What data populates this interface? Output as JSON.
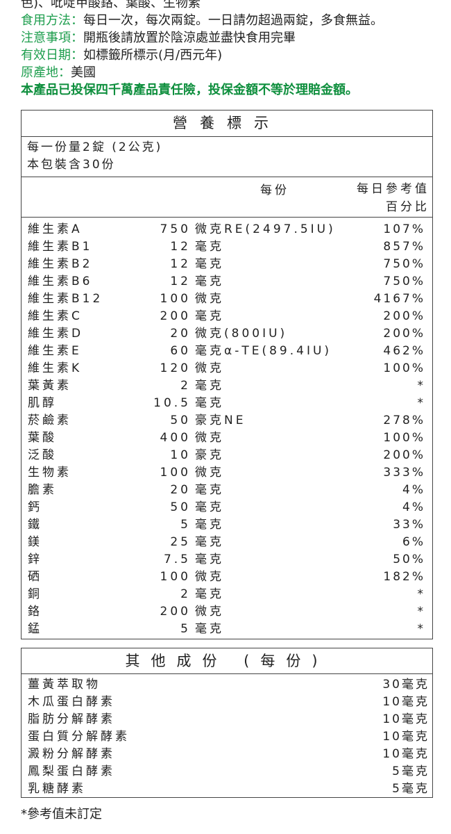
{
  "info": {
    "top_line": "色)、吡啶甲酸鉻、葉酸、生物素",
    "lines": [
      {
        "label": "食用方法：",
        "text": "每日一次，每次兩錠。一日請勿超過兩錠，多食無益。"
      },
      {
        "label": "注意事項：",
        "text": "開瓶後請放置於陰涼處並盡快食用完畢"
      },
      {
        "label": "有效日期：",
        "text": "如標籤所標示(月/西元年)"
      },
      {
        "label": "原產地：",
        "text": "美國"
      }
    ],
    "insurance": "本產品已投保四千萬產品責任險，投保金額不等於理賠金額。"
  },
  "nutrition": {
    "title": "營養標示",
    "serving_size": "每一份量2錠 (2公克)",
    "servings": "本包裝含30份",
    "col_per_serving": "每份",
    "col_dv_1": "每日參考值",
    "col_dv_2": "百分比",
    "rows": [
      {
        "name": "維生素A",
        "qty": "750",
        "unit": "微克RE(2497.5IU)",
        "dv": "107%"
      },
      {
        "name": "維生素B1",
        "qty": "12",
        "unit": "毫克",
        "dv": "857%"
      },
      {
        "name": "維生素B2",
        "qty": "12",
        "unit": "毫克",
        "dv": "750%"
      },
      {
        "name": "維生素B6",
        "qty": "12",
        "unit": "毫克",
        "dv": "750%"
      },
      {
        "name": "維生素B12",
        "qty": "100",
        "unit": "微克",
        "dv": "4167%"
      },
      {
        "name": "維生素C",
        "qty": "200",
        "unit": "毫克",
        "dv": "200%"
      },
      {
        "name": "維生素D",
        "qty": "20",
        "unit": "微克(800IU)",
        "dv": "200%"
      },
      {
        "name": "維生素E",
        "qty": "60",
        "unit": "毫克α-TE(89.4IU)",
        "dv": "462%"
      },
      {
        "name": "維生素K",
        "qty": "120",
        "unit": "微克",
        "dv": "100%"
      },
      {
        "name": "葉黃素",
        "qty": "2",
        "unit": "毫克",
        "dv": "*"
      },
      {
        "name": "肌醇",
        "qty": "10.5",
        "unit": "毫克",
        "dv": "*"
      },
      {
        "name": "菸鹼素",
        "qty": "50",
        "unit": "豪克NE",
        "dv": "278%"
      },
      {
        "name": "葉酸",
        "qty": "400",
        "unit": "微克",
        "dv": "100%"
      },
      {
        "name": "泛酸",
        "qty": "10",
        "unit": "豪克",
        "dv": "200%"
      },
      {
        "name": "生物素",
        "qty": "100",
        "unit": "微克",
        "dv": "333%"
      },
      {
        "name": "膽素",
        "qty": "20",
        "unit": "毫克",
        "dv": "4%"
      },
      {
        "name": "鈣",
        "qty": "50",
        "unit": "毫克",
        "dv": "4%"
      },
      {
        "name": "鐵",
        "qty": "5",
        "unit": "毫克",
        "dv": "33%"
      },
      {
        "name": "鎂",
        "qty": "25",
        "unit": "毫克",
        "dv": "6%"
      },
      {
        "name": "鋅",
        "qty": "7.5",
        "unit": "毫克",
        "dv": "50%"
      },
      {
        "name": "硒",
        "qty": "100",
        "unit": "微克",
        "dv": "182%"
      },
      {
        "name": "銅",
        "qty": "2",
        "unit": "毫克",
        "dv": "*"
      },
      {
        "name": "鉻",
        "qty": "200",
        "unit": "微克",
        "dv": "*"
      },
      {
        "name": "錳",
        "qty": "5",
        "unit": "毫克",
        "dv": "*"
      }
    ]
  },
  "other": {
    "title": "其他成份 (每份)",
    "rows": [
      {
        "name": "薑黃萃取物",
        "amount": "30毫克"
      },
      {
        "name": "木瓜蛋白酵素",
        "amount": "10毫克"
      },
      {
        "name": "脂肪分解酵素",
        "amount": "10毫克"
      },
      {
        "name": "蛋白質分解酵素",
        "amount": "10毫克"
      },
      {
        "name": "澱粉分解酵素",
        "amount": "10毫克"
      },
      {
        "name": "鳳梨蛋白酵素",
        "amount": "5毫克"
      },
      {
        "name": "乳糖酵素",
        "amount": "5毫克"
      }
    ]
  },
  "footnote": "*參考值未訂定",
  "colors": {
    "label_green": "#1e9e4e",
    "insurance_green": "#0f8f3e"
  }
}
